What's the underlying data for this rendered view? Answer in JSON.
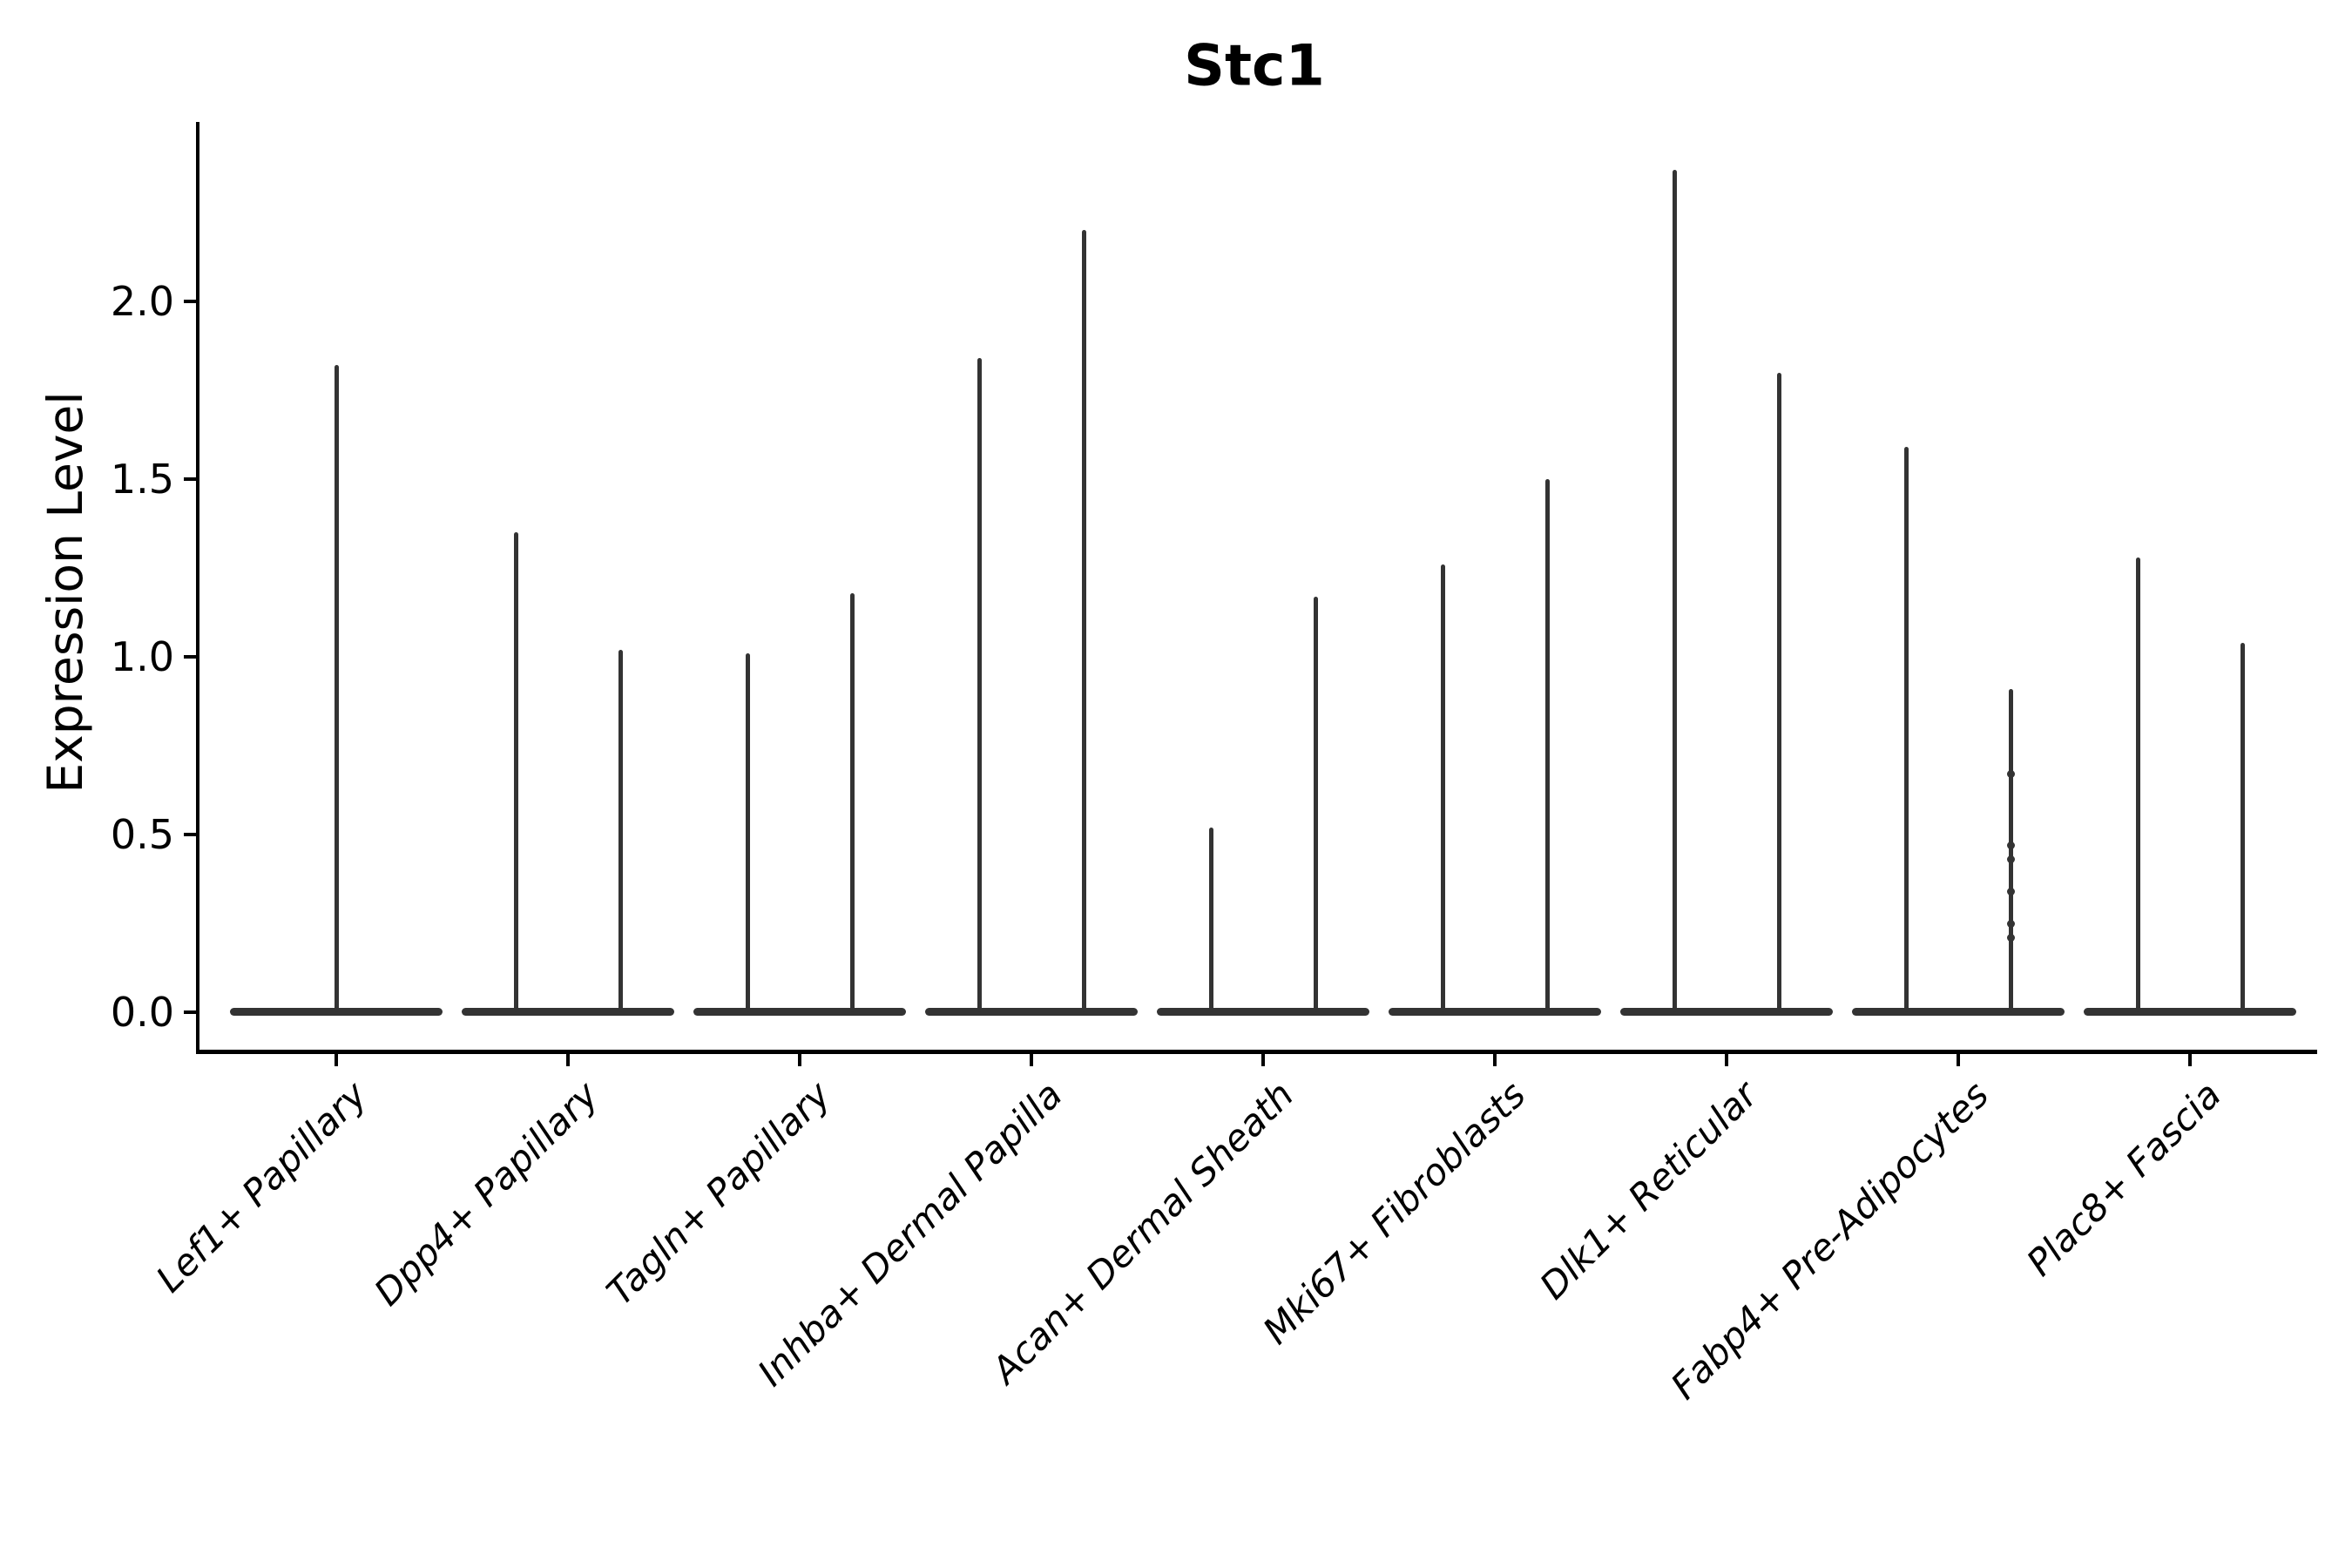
{
  "title": "Stc1",
  "axes": {
    "ylabel": "Expression Level",
    "ytick_labels": [
      "0.0",
      "0.5",
      "1.0",
      "1.5",
      "2.0"
    ]
  },
  "colors": {
    "violin": "#333333",
    "axis": "#000000",
    "text": "#000000",
    "background": "#ffffff"
  },
  "chart_data": {
    "type": "violin",
    "title": "Stc1",
    "xlabel": "",
    "ylabel": "Expression Level",
    "ylim": [
      -0.113,
      2.505
    ],
    "yticks": [
      0.0,
      0.5,
      1.0,
      1.5,
      2.0
    ],
    "grid": false,
    "legend": "none",
    "description": "Single-cell expression violin plot; each cluster shows one or two extremely thin violins (mass concentrated at 0 with a narrow spike up to the maximum expression value).",
    "categories": [
      "Lef1+ Papillary",
      "Dpp4+ Papillary",
      "Tagln+ Papillary",
      "Inhba+ Dermal Papilla",
      "Acan+ Dermal Sheath",
      "Mki67+ Fibroblasts",
      "Dlk1+ Reticular",
      "Fabp4+ Pre-Adipocytes",
      "Plac8+ Fascia"
    ],
    "series": [
      {
        "category": "Lef1+ Papillary",
        "base_value": 0.0,
        "violin_maxima": [
          1.82
        ],
        "points": []
      },
      {
        "category": "Dpp4+ Papillary",
        "base_value": 0.0,
        "violin_maxima": [
          1.35,
          1.02
        ],
        "points": []
      },
      {
        "category": "Tagln+ Papillary",
        "base_value": 0.0,
        "violin_maxima": [
          1.01,
          1.18
        ],
        "points": []
      },
      {
        "category": "Inhba+ Dermal Papilla",
        "base_value": 0.0,
        "violin_maxima": [
          1.84,
          2.2
        ],
        "points": []
      },
      {
        "category": "Acan+ Dermal Sheath",
        "base_value": 0.0,
        "violin_maxima": [
          0.52,
          1.17
        ],
        "points": []
      },
      {
        "category": "Mki67+ Fibroblasts",
        "base_value": 0.0,
        "violin_maxima": [
          1.26,
          1.5
        ],
        "points": []
      },
      {
        "category": "Dlk1+ Reticular",
        "base_value": 0.0,
        "violin_maxima": [
          2.37,
          1.8
        ],
        "points": []
      },
      {
        "category": "Fabp4+ Pre-Adipocytes",
        "base_value": 0.0,
        "violin_maxima": [
          1.59,
          0.91
        ],
        "points": [
          {
            "violin": 1,
            "values": [
              0.67,
              0.47,
              0.43,
              0.34,
              0.25,
              0.21
            ]
          }
        ]
      },
      {
        "category": "Plac8+ Fascia",
        "base_value": 0.0,
        "violin_maxima": [
          1.28,
          1.04
        ],
        "points": []
      }
    ]
  }
}
